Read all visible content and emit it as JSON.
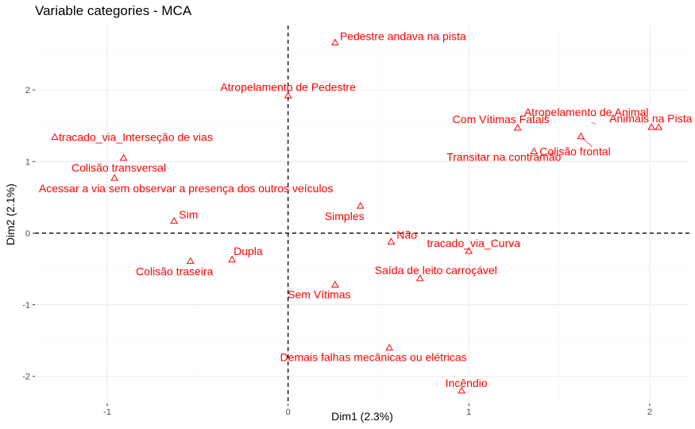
{
  "chart_data": {
    "type": "scatter",
    "title": "Variable categories - MCA",
    "xlabel": "Dim1 (2.3%)",
    "ylabel": "Dim2 (2.1%)",
    "xlim": [
      -1.4,
      2.22
    ],
    "ylim": [
      -2.38,
      2.9
    ],
    "xticks": [
      -1,
      0,
      1,
      2
    ],
    "yticks": [
      -2,
      -1,
      0,
      1,
      2
    ],
    "xtick_labels": [
      "-1",
      "0",
      "1",
      "2"
    ],
    "ytick_labels": [
      "-2",
      "-1",
      "0",
      "1",
      "2"
    ],
    "grid": true,
    "reference_lines": {
      "x": 0,
      "y": 0,
      "style": "dashed"
    },
    "color": "#ff0000",
    "points": [
      {
        "label": "Pedestre andava na pista",
        "x": 0.26,
        "y": 2.66
      },
      {
        "label": "Atropelamento de Pedestre",
        "x": 0.0,
        "y": 1.92
      },
      {
        "label": "tracado_via_Interseção de vias",
        "x": -1.29,
        "y": 1.34
      },
      {
        "label": "Colisão transversal",
        "x": -0.91,
        "y": 1.05
      },
      {
        "label": "Acessar a via sem observar a presença dos outros veículos",
        "x": -0.96,
        "y": 0.77
      },
      {
        "label": "Sim",
        "x": -0.63,
        "y": 0.17
      },
      {
        "label": "Dupla",
        "x": -0.31,
        "y": -0.37
      },
      {
        "label": "Colisão traseira",
        "x": -0.54,
        "y": -0.39
      },
      {
        "label": "Simples",
        "x": 0.4,
        "y": 0.38
      },
      {
        "label": "Não",
        "x": 0.57,
        "y": -0.12
      },
      {
        "label": "tracado_via_Curva",
        "x": 1.0,
        "y": -0.25
      },
      {
        "label": "Saída de leito carroçável",
        "x": 0.73,
        "y": -0.63
      },
      {
        "label": "Sem Vítimas",
        "x": 0.26,
        "y": -0.72
      },
      {
        "label": "Demais falhas mecânicas ou elétricas",
        "x": 0.56,
        "y": -1.6
      },
      {
        "label": "Incêndio",
        "x": 0.96,
        "y": -2.2
      },
      {
        "label": "Com Vítimas Fatais",
        "x": 1.27,
        "y": 1.47
      },
      {
        "label": "Colisão frontal",
        "x": 1.36,
        "y": 1.14
      },
      {
        "label": "Transitar na contramão",
        "x": 1.62,
        "y": 1.35
      },
      {
        "label": "Atropelamento de Animal",
        "x": 2.01,
        "y": 1.48
      },
      {
        "label": "Animais na Pista",
        "x": 2.05,
        "y": 1.48
      }
    ]
  }
}
